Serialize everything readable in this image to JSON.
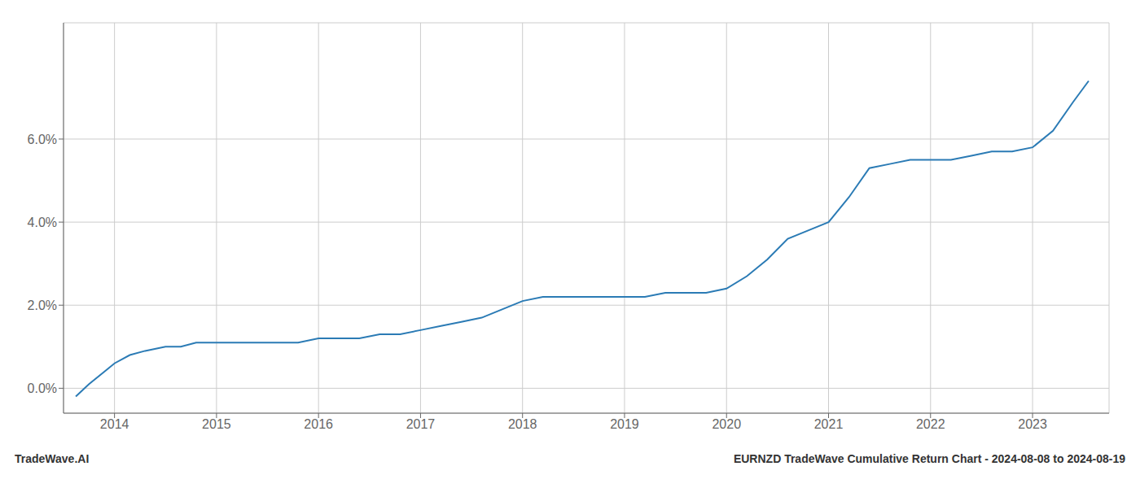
{
  "chart_data": {
    "type": "line",
    "title": "EURNZD TradeWave Cumulative Return Chart - 2024-08-08 to 2024-08-19",
    "annotations": [
      "TradeWave.AI"
    ],
    "color": "#2b7bb5",
    "grid": true,
    "x": [
      2013.62,
      2013.75,
      2013.9,
      2014.0,
      2014.15,
      2014.3,
      2014.5,
      2014.65,
      2014.8,
      2015.0,
      2015.2,
      2015.4,
      2015.6,
      2015.8,
      2016.0,
      2016.2,
      2016.4,
      2016.6,
      2016.8,
      2017.0,
      2017.2,
      2017.4,
      2017.6,
      2017.8,
      2018.0,
      2018.2,
      2018.4,
      2018.6,
      2018.8,
      2019.0,
      2019.2,
      2019.4,
      2019.6,
      2019.8,
      2020.0,
      2020.2,
      2020.4,
      2020.6,
      2020.8,
      2021.0,
      2021.2,
      2021.4,
      2021.6,
      2021.8,
      2022.0,
      2022.2,
      2022.4,
      2022.6,
      2022.8,
      2023.0,
      2023.2,
      2023.4,
      2023.55
    ],
    "values": [
      -0.002,
      0.001,
      0.004,
      0.006,
      0.008,
      0.009,
      0.01,
      0.01,
      0.011,
      0.011,
      0.011,
      0.011,
      0.011,
      0.011,
      0.012,
      0.012,
      0.012,
      0.013,
      0.013,
      0.014,
      0.015,
      0.016,
      0.017,
      0.019,
      0.021,
      0.022,
      0.022,
      0.022,
      0.022,
      0.022,
      0.022,
      0.023,
      0.023,
      0.023,
      0.024,
      0.027,
      0.031,
      0.036,
      0.038,
      0.04,
      0.046,
      0.053,
      0.054,
      0.055,
      0.055,
      0.055,
      0.056,
      0.057,
      0.057,
      0.058,
      0.062,
      0.069,
      0.074
    ],
    "xlim": [
      2013.5,
      2023.75
    ],
    "xticks": [
      2014,
      2015,
      2016,
      2017,
      2018,
      2019,
      2020,
      2021,
      2022,
      2023
    ],
    "ylim": [
      -0.006,
      0.088
    ],
    "yticks": [
      {
        "value": 0.0,
        "label": "0.0%"
      },
      {
        "value": 0.02,
        "label": "2.0%"
      },
      {
        "value": 0.04,
        "label": "4.0%"
      },
      {
        "value": 0.06,
        "label": "6.0%"
      }
    ]
  }
}
